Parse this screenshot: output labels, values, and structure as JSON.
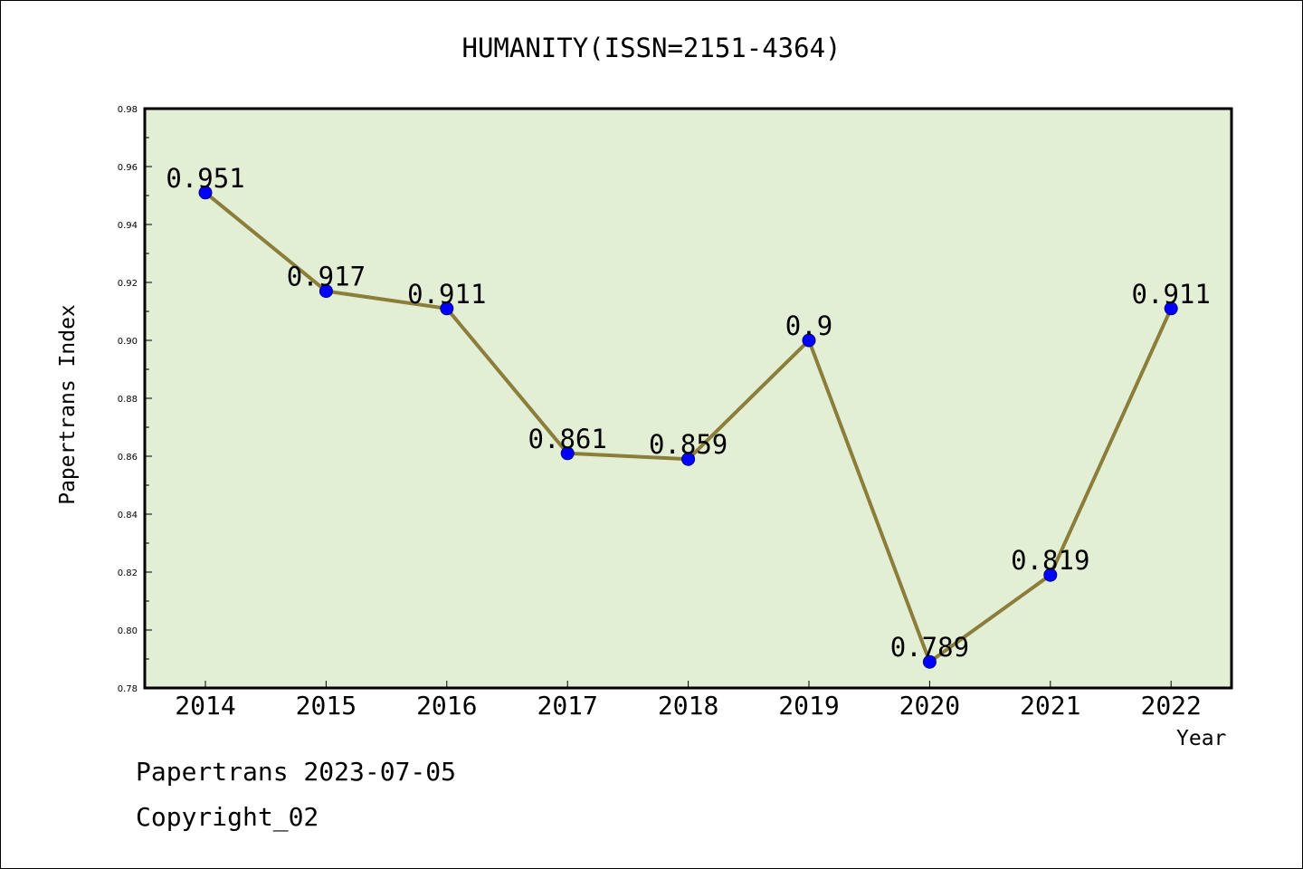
{
  "chart_data": {
    "type": "line",
    "title": "HUMANITY(ISSN=2151-4364)",
    "xlabel": "Year",
    "ylabel": "Papertrans Index",
    "categories": [
      "2014",
      "2015",
      "2016",
      "2017",
      "2018",
      "2019",
      "2020",
      "2021",
      "2022"
    ],
    "series": [
      {
        "values": [
          0.951,
          0.917,
          0.911,
          0.861,
          0.859,
          0.9,
          0.789,
          0.819,
          0.911
        ],
        "data_labels": [
          "0.951",
          "0.917",
          "0.911",
          "0.861",
          "0.859",
          "0.9",
          "0.789",
          "0.819",
          "0.911"
        ],
        "line_color": "#8b7d3a",
        "marker_color": "#0000ff"
      }
    ],
    "ylim": [
      0.78,
      0.98
    ],
    "yticks": [
      "0.78",
      "0.80",
      "0.82",
      "0.84",
      "0.86",
      "0.88",
      "0.90",
      "0.92",
      "0.94",
      "0.96",
      "0.98"
    ],
    "plot_background": "#e2efd5",
    "grid": false,
    "legend": "none"
  },
  "footer": {
    "line1": "Papertrans 2023-07-05",
    "line2": "Copyright_02"
  }
}
